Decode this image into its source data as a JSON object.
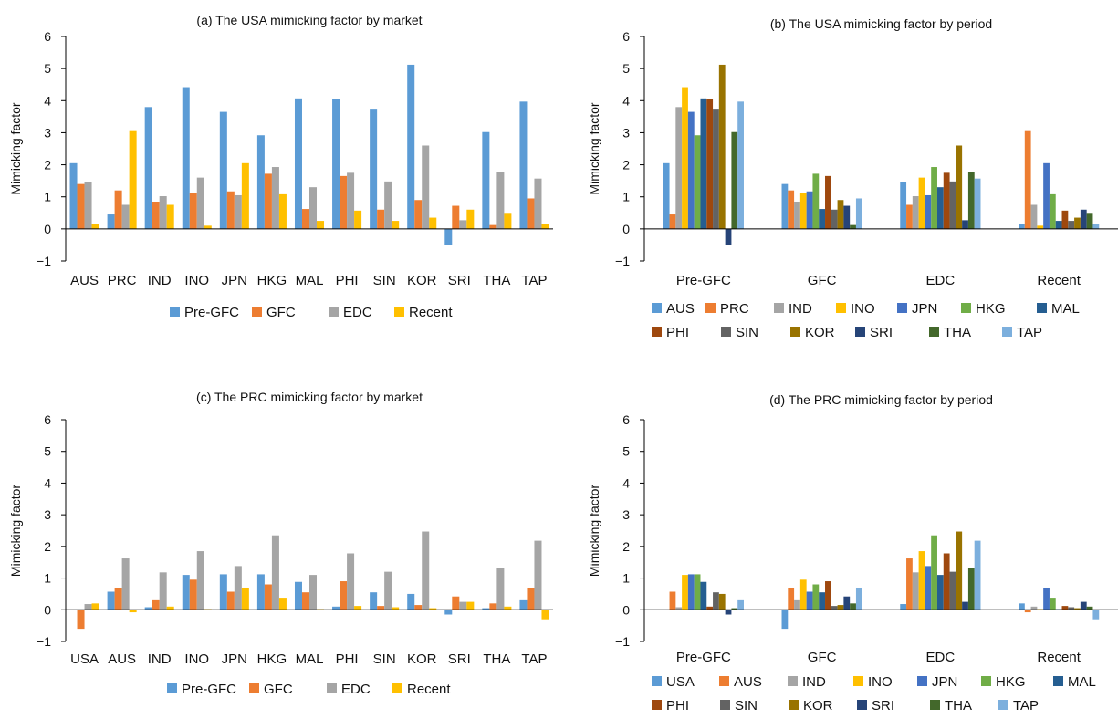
{
  "chart_data": [
    {
      "type": "bar",
      "title": "(a) The USA mimicking factor by market",
      "ylabel": "Mimicking factor",
      "xlabel": "",
      "ylim": [
        -1,
        6
      ],
      "yticks": [
        "−1",
        "0",
        "1",
        "2",
        "3",
        "4",
        "5",
        "6"
      ],
      "legend_position": "bottom",
      "categories": [
        "AUS",
        "PRC",
        "IND",
        "INO",
        "JPN",
        "HKG",
        "MAL",
        "PHI",
        "SIN",
        "KOR",
        "SRI",
        "THA",
        "TAP"
      ],
      "series": [
        {
          "name": "Pre-GFC",
          "color": "#5B9BD5",
          "values": [
            2.05,
            0.45,
            3.8,
            4.42,
            3.65,
            2.92,
            4.07,
            4.05,
            3.72,
            5.12,
            -0.5,
            3.02,
            3.97
          ]
        },
        {
          "name": "GFC",
          "color": "#ED7D31",
          "values": [
            1.4,
            1.2,
            0.85,
            1.12,
            1.17,
            1.72,
            0.62,
            1.65,
            0.6,
            0.9,
            0.72,
            0.12,
            0.95
          ]
        },
        {
          "name": "EDC",
          "color": "#A5A5A5",
          "values": [
            1.45,
            0.75,
            1.02,
            1.6,
            1.05,
            1.93,
            1.3,
            1.75,
            1.48,
            2.6,
            0.27,
            1.77,
            1.57
          ]
        },
        {
          "name": "Recent",
          "color": "#FFC000",
          "values": [
            0.15,
            3.05,
            0.75,
            0.1,
            2.05,
            1.08,
            0.25,
            0.57,
            0.25,
            0.35,
            0.6,
            0.5,
            0.15
          ]
        }
      ]
    },
    {
      "type": "bar",
      "title": "(b) The USA mimicking factor by period",
      "ylabel": "Mimicking factor",
      "xlabel": "",
      "ylim": [
        -1,
        6
      ],
      "yticks": [
        "−1",
        "0",
        "1",
        "2",
        "3",
        "4",
        "5",
        "6"
      ],
      "legend_position": "bottom",
      "categories": [
        "Pre-GFC",
        "GFC",
        "EDC",
        "Recent"
      ],
      "series": [
        {
          "name": "AUS",
          "color": "#5B9BD5",
          "values": [
            2.05,
            1.4,
            1.45,
            0.15
          ]
        },
        {
          "name": "PRC",
          "color": "#ED7D31",
          "values": [
            0.45,
            1.2,
            0.75,
            3.05
          ]
        },
        {
          "name": "IND",
          "color": "#A5A5A5",
          "values": [
            3.8,
            0.85,
            1.02,
            0.75
          ]
        },
        {
          "name": "INO",
          "color": "#FFC000",
          "values": [
            4.42,
            1.12,
            1.6,
            0.1
          ]
        },
        {
          "name": "JPN",
          "color": "#4472C4",
          "values": [
            3.65,
            1.17,
            1.05,
            2.05
          ]
        },
        {
          "name": "HKG",
          "color": "#70AD47",
          "values": [
            2.92,
            1.72,
            1.93,
            1.08
          ]
        },
        {
          "name": "MAL",
          "color": "#255E91",
          "values": [
            4.07,
            0.62,
            1.3,
            0.25
          ]
        },
        {
          "name": "PHI",
          "color": "#9E480E",
          "values": [
            4.05,
            1.65,
            1.75,
            0.57
          ]
        },
        {
          "name": "SIN",
          "color": "#636363",
          "values": [
            3.72,
            0.6,
            1.48,
            0.25
          ]
        },
        {
          "name": "KOR",
          "color": "#997300",
          "values": [
            5.12,
            0.9,
            2.6,
            0.35
          ]
        },
        {
          "name": "SRI",
          "color": "#264478",
          "values": [
            -0.5,
            0.72,
            0.27,
            0.6
          ]
        },
        {
          "name": "THA",
          "color": "#43682B",
          "values": [
            3.02,
            0.12,
            1.77,
            0.5
          ]
        },
        {
          "name": "TAP",
          "color": "#7CAFDD",
          "values": [
            3.97,
            0.95,
            1.57,
            0.15
          ]
        }
      ]
    },
    {
      "type": "bar",
      "title": "(c) The PRC mimicking factor by market",
      "ylabel": "Mimicking factor",
      "xlabel": "",
      "ylim": [
        -1,
        6
      ],
      "yticks": [
        "−1",
        "0",
        "1",
        "2",
        "3",
        "4",
        "5",
        "6"
      ],
      "legend_position": "bottom",
      "categories": [
        "USA",
        "AUS",
        "IND",
        "INO",
        "JPN",
        "HKG",
        "MAL",
        "PHI",
        "SIN",
        "KOR",
        "SRI",
        "THA",
        "TAP"
      ],
      "series": [
        {
          "name": "Pre-GFC",
          "color": "#5B9BD5",
          "values": [
            -0.02,
            0.57,
            0.08,
            1.1,
            1.12,
            1.12,
            0.88,
            0.1,
            0.55,
            0.5,
            -0.15,
            0.05,
            0.3
          ]
        },
        {
          "name": "GFC",
          "color": "#ED7D31",
          "values": [
            -0.6,
            0.7,
            0.3,
            0.95,
            0.57,
            0.8,
            0.55,
            0.9,
            0.12,
            0.15,
            0.42,
            0.2,
            0.7
          ]
        },
        {
          "name": "EDC",
          "color": "#A5A5A5",
          "values": [
            0.18,
            1.62,
            1.18,
            1.85,
            1.38,
            2.35,
            1.1,
            1.78,
            1.2,
            2.47,
            0.25,
            1.32,
            2.18
          ]
        },
        {
          "name": "Recent",
          "color": "#FFC000",
          "values": [
            0.2,
            -0.08,
            0.1,
            0.02,
            0.7,
            0.38,
            0.02,
            0.12,
            0.08,
            0.05,
            0.25,
            0.1,
            -0.3
          ]
        }
      ]
    },
    {
      "type": "bar",
      "title": "(d) The PRC mimicking factor by period",
      "ylabel": "Mimicking factor",
      "xlabel": "",
      "ylim": [
        -1,
        6
      ],
      "yticks": [
        "−1",
        "0",
        "1",
        "2",
        "3",
        "4",
        "5",
        "6"
      ],
      "legend_position": "bottom",
      "categories": [
        "Pre-GFC",
        "GFC",
        "EDC",
        "Recent"
      ],
      "series": [
        {
          "name": "USA",
          "color": "#5B9BD5",
          "values": [
            -0.02,
            -0.6,
            0.18,
            0.2
          ]
        },
        {
          "name": "AUS",
          "color": "#ED7D31",
          "values": [
            0.57,
            0.7,
            1.62,
            -0.08
          ]
        },
        {
          "name": "IND",
          "color": "#A5A5A5",
          "values": [
            0.08,
            0.3,
            1.18,
            0.1
          ]
        },
        {
          "name": "INO",
          "color": "#FFC000",
          "values": [
            1.1,
            0.95,
            1.85,
            0.02
          ]
        },
        {
          "name": "JPN",
          "color": "#4472C4",
          "values": [
            1.12,
            0.57,
            1.38,
            0.7
          ]
        },
        {
          "name": "HKG",
          "color": "#70AD47",
          "values": [
            1.12,
            0.8,
            2.35,
            0.38
          ]
        },
        {
          "name": "MAL",
          "color": "#255E91",
          "values": [
            0.88,
            0.55,
            1.1,
            0.02
          ]
        },
        {
          "name": "PHI",
          "color": "#9E480E",
          "values": [
            0.1,
            0.9,
            1.78,
            0.12
          ]
        },
        {
          "name": "SIN",
          "color": "#636363",
          "values": [
            0.55,
            0.12,
            1.2,
            0.08
          ]
        },
        {
          "name": "KOR",
          "color": "#997300",
          "values": [
            0.5,
            0.15,
            2.47,
            0.05
          ]
        },
        {
          "name": "SRI",
          "color": "#264478",
          "values": [
            -0.15,
            0.42,
            0.25,
            0.25
          ]
        },
        {
          "name": "THA",
          "color": "#43682B",
          "values": [
            0.05,
            0.2,
            1.32,
            0.1
          ]
        },
        {
          "name": "TAP",
          "color": "#7CAFDD",
          "values": [
            0.3,
            0.7,
            2.18,
            -0.3
          ]
        }
      ]
    }
  ]
}
